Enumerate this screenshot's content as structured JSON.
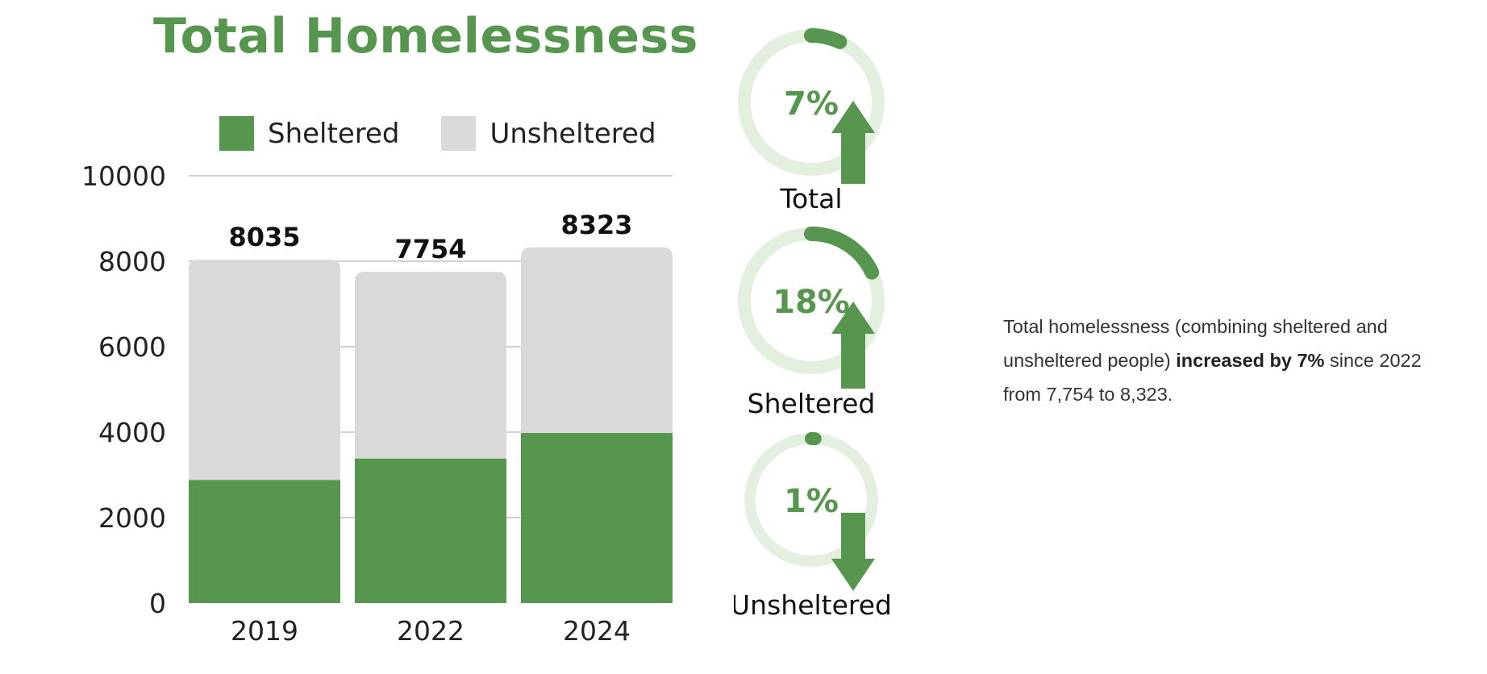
{
  "colors": {
    "sheltered": "#56964f",
    "unsheltered": "#d9d9d9",
    "ring_track": "#e3f0df",
    "accent": "#56964f",
    "grid": "#d0d0d0"
  },
  "chart_data": {
    "type": "bar",
    "stacked": true,
    "title": "Total Homelessness",
    "categories": [
      "2019",
      "2022",
      "2024"
    ],
    "series": [
      {
        "name": "Sheltered",
        "values": [
          2880,
          3380,
          3980
        ]
      },
      {
        "name": "Unsheltered",
        "values": [
          5155,
          4374,
          4343
        ]
      }
    ],
    "totals": [
      "8035",
      "7754",
      "8323"
    ],
    "yticks": [
      "0",
      "2000",
      "4000",
      "6000",
      "8000",
      "10000"
    ],
    "ylim": [
      0,
      10000
    ],
    "legend_position": "top",
    "grid": true
  },
  "indicators": [
    {
      "label": "Total",
      "percent": 7,
      "percent_text": "7%",
      "direction": "up"
    },
    {
      "label": "Sheltered",
      "percent": 18,
      "percent_text": "18%",
      "direction": "up"
    },
    {
      "label": "Unsheltered",
      "percent": 1,
      "percent_text": "1%",
      "direction": "down"
    }
  ],
  "summary": {
    "before": "Total homelessness (combining sheltered and unsheltered people) ",
    "bold": "increased by 7%",
    "after": " since 2022 from 7,754 to 8,323."
  }
}
